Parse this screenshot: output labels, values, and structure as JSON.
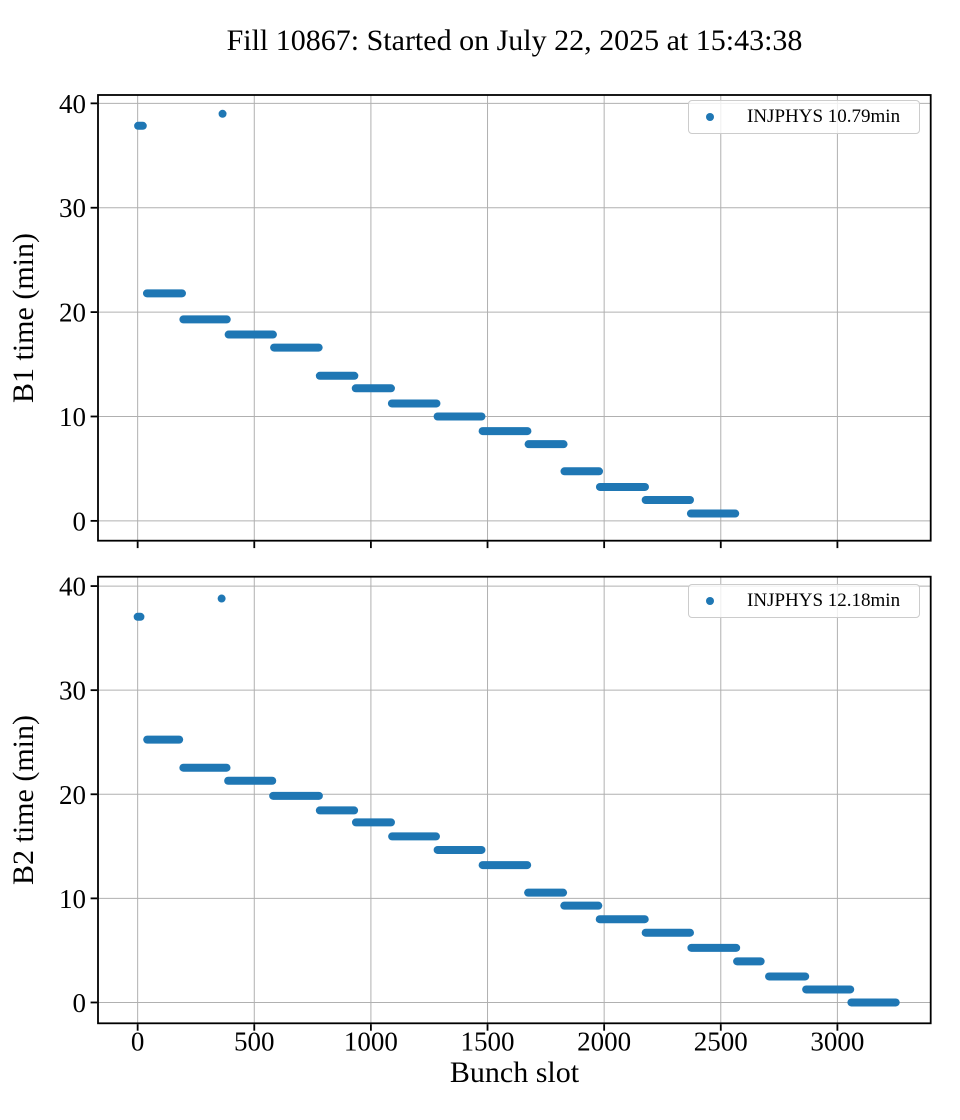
{
  "title": "Fill 10867: Started on July 22, 2025 at 15:43:38",
  "xlabel": "Bunch slot",
  "colors": {
    "marker": "#1f77b4",
    "grid": "#b0b0b0",
    "spine": "#000000",
    "legend_border": "#cccccc"
  },
  "chart_data": [
    {
      "type": "scatter",
      "ylabel": "B1 time (min)",
      "legend": "INJPHYS 10.79min",
      "legend_position": "upper right",
      "grid": true,
      "xlim": [
        -170,
        3400
      ],
      "ylim": [
        -1.9,
        40.8
      ],
      "xticks": [
        0,
        500,
        1000,
        1500,
        2000,
        2500,
        3000
      ],
      "yticks": [
        0,
        10,
        20,
        30,
        40
      ],
      "x_tick_labels_visible": false,
      "points": [
        {
          "x": 364,
          "y": 39.0
        }
      ],
      "steps": [
        [
          2,
          22,
          37.85
        ],
        [
          40,
          190,
          21.8
        ],
        [
          196,
          382,
          19.3
        ],
        [
          390,
          580,
          17.85
        ],
        [
          585,
          776,
          16.6
        ],
        [
          781,
          929,
          13.9
        ],
        [
          935,
          1086,
          12.7
        ],
        [
          1090,
          1281,
          11.25
        ],
        [
          1286,
          1474,
          10.0
        ],
        [
          1479,
          1671,
          8.6
        ],
        [
          1676,
          1826,
          7.35
        ],
        [
          1830,
          1978,
          4.75
        ],
        [
          1982,
          2175,
          3.25
        ],
        [
          2178,
          2368,
          2.0
        ],
        [
          2372,
          2562,
          0.7
        ]
      ]
    },
    {
      "type": "scatter",
      "ylabel": "B2 time (min)",
      "legend": "INJPHYS 12.18min",
      "legend_position": "upper right",
      "grid": true,
      "xlim": [
        -170,
        3400
      ],
      "ylim": [
        -2.0,
        40.9
      ],
      "xticks": [
        0,
        500,
        1000,
        1500,
        2000,
        2500,
        3000
      ],
      "yticks": [
        0,
        10,
        20,
        30,
        40
      ],
      "x_tick_labels_visible": true,
      "points": [
        {
          "x": 360,
          "y": 38.8
        }
      ],
      "steps": [
        [
          0,
          12,
          37.05
        ],
        [
          41,
          178,
          25.25
        ],
        [
          196,
          381,
          22.55
        ],
        [
          388,
          577,
          21.3
        ],
        [
          581,
          777,
          19.85
        ],
        [
          781,
          928,
          18.45
        ],
        [
          936,
          1086,
          17.3
        ],
        [
          1091,
          1279,
          15.95
        ],
        [
          1286,
          1474,
          14.65
        ],
        [
          1479,
          1670,
          13.2
        ],
        [
          1674,
          1824,
          10.55
        ],
        [
          1829,
          1975,
          9.3
        ],
        [
          1981,
          2174,
          8.0
        ],
        [
          2178,
          2368,
          6.7
        ],
        [
          2374,
          2566,
          5.25
        ],
        [
          2570,
          2671,
          3.95
        ],
        [
          2707,
          2862,
          2.5
        ],
        [
          2866,
          3055,
          1.25
        ],
        [
          3060,
          3250,
          0.0
        ]
      ]
    }
  ]
}
